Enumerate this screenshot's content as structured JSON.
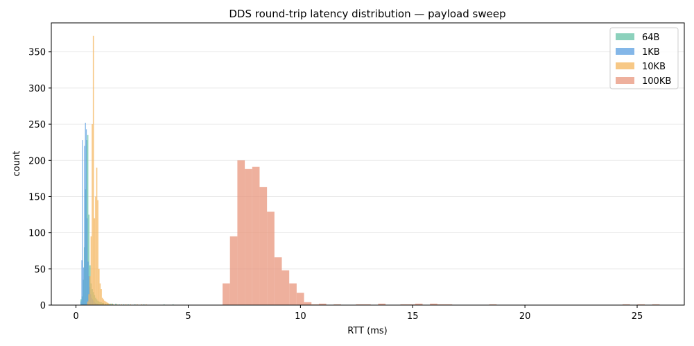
{
  "chart_data": {
    "type": "histogram",
    "title": "DDS round-trip latency distribution — payload sweep",
    "xlabel": "RTT (ms)",
    "ylabel": "count",
    "xlim": [
      -1.1,
      27.1
    ],
    "ylim": [
      0,
      390
    ],
    "xticks": [
      0,
      5,
      10,
      15,
      20,
      25
    ],
    "yticks": [
      0,
      50,
      100,
      150,
      200,
      250,
      300,
      350
    ],
    "grid": "y",
    "legend_position": "top-right",
    "series": [
      {
        "name": "64B",
        "color": "#66c2a5",
        "bin_width": 0.05,
        "bins": [
          [
            0.2,
            8
          ],
          [
            0.25,
            12
          ],
          [
            0.3,
            35
          ],
          [
            0.35,
            80
          ],
          [
            0.4,
            160
          ],
          [
            0.45,
            228
          ],
          [
            0.5,
            235
          ],
          [
            0.55,
            125
          ],
          [
            0.6,
            55
          ],
          [
            0.65,
            30
          ],
          [
            0.7,
            22
          ],
          [
            0.75,
            18
          ],
          [
            0.8,
            14
          ],
          [
            0.85,
            10
          ],
          [
            0.9,
            8
          ],
          [
            0.95,
            6
          ],
          [
            1.0,
            5
          ],
          [
            1.05,
            4
          ],
          [
            1.1,
            4
          ],
          [
            1.15,
            3
          ],
          [
            1.2,
            3
          ],
          [
            1.3,
            2
          ],
          [
            1.4,
            2
          ],
          [
            1.5,
            2
          ],
          [
            1.6,
            2
          ],
          [
            1.75,
            2
          ],
          [
            1.9,
            1
          ],
          [
            2.1,
            1
          ],
          [
            2.3,
            1
          ],
          [
            2.6,
            1
          ],
          [
            3.0,
            1
          ],
          [
            3.9,
            1
          ],
          [
            4.3,
            1
          ]
        ]
      },
      {
        "name": "1KB",
        "color": "#5b9fe0",
        "bin_width": 0.04,
        "bins": [
          [
            0.2,
            5
          ],
          [
            0.24,
            62
          ],
          [
            0.28,
            228
          ],
          [
            0.32,
            52
          ],
          [
            0.36,
            220
          ],
          [
            0.4,
            252
          ],
          [
            0.44,
            243
          ],
          [
            0.48,
            120
          ],
          [
            0.52,
            60
          ],
          [
            0.56,
            40
          ],
          [
            0.6,
            25
          ],
          [
            0.64,
            15
          ],
          [
            0.68,
            10
          ],
          [
            0.72,
            8
          ],
          [
            0.76,
            6
          ],
          [
            0.8,
            4
          ],
          [
            0.84,
            3
          ],
          [
            0.88,
            2
          ],
          [
            0.92,
            2
          ],
          [
            0.96,
            1
          ],
          [
            1.0,
            1
          ],
          [
            1.1,
            1
          ]
        ]
      },
      {
        "name": "10KB",
        "color": "#f4b55e",
        "bin_width": 0.05,
        "bins": [
          [
            0.5,
            5
          ],
          [
            0.55,
            15
          ],
          [
            0.6,
            40
          ],
          [
            0.65,
            95
          ],
          [
            0.7,
            250
          ],
          [
            0.75,
            372
          ],
          [
            0.8,
            120
          ],
          [
            0.85,
            150
          ],
          [
            0.9,
            190
          ],
          [
            0.95,
            145
          ],
          [
            1.0,
            50
          ],
          [
            1.05,
            30
          ],
          [
            1.1,
            22
          ],
          [
            1.15,
            10
          ],
          [
            1.2,
            8
          ],
          [
            1.25,
            6
          ],
          [
            1.3,
            5
          ],
          [
            1.35,
            4
          ],
          [
            1.4,
            3
          ],
          [
            1.45,
            2
          ],
          [
            1.55,
            2
          ],
          [
            1.65,
            1
          ],
          [
            1.8,
            1
          ],
          [
            2.0,
            1
          ],
          [
            2.2,
            1
          ],
          [
            2.4,
            1
          ],
          [
            2.7,
            1
          ],
          [
            2.9,
            1
          ],
          [
            3.1,
            1
          ]
        ]
      },
      {
        "name": "100KB",
        "color": "#e8967c",
        "bin_width": 0.33,
        "bins": [
          [
            6.53,
            30
          ],
          [
            6.86,
            95
          ],
          [
            7.19,
            200
          ],
          [
            7.52,
            188
          ],
          [
            7.85,
            191
          ],
          [
            8.18,
            163
          ],
          [
            8.51,
            129
          ],
          [
            8.84,
            66
          ],
          [
            9.17,
            48
          ],
          [
            9.5,
            30
          ],
          [
            9.83,
            17
          ],
          [
            10.16,
            4
          ],
          [
            10.49,
            1
          ],
          [
            10.82,
            2
          ],
          [
            11.48,
            1
          ],
          [
            12.47,
            1
          ],
          [
            12.8,
            1
          ],
          [
            13.46,
            2
          ],
          [
            14.45,
            1
          ],
          [
            14.78,
            1
          ],
          [
            15.11,
            2
          ],
          [
            15.77,
            2
          ],
          [
            16.1,
            1
          ],
          [
            16.43,
            1
          ],
          [
            18.41,
            1
          ],
          [
            24.35,
            1
          ],
          [
            25.01,
            1
          ],
          [
            25.67,
            1
          ]
        ]
      }
    ]
  }
}
